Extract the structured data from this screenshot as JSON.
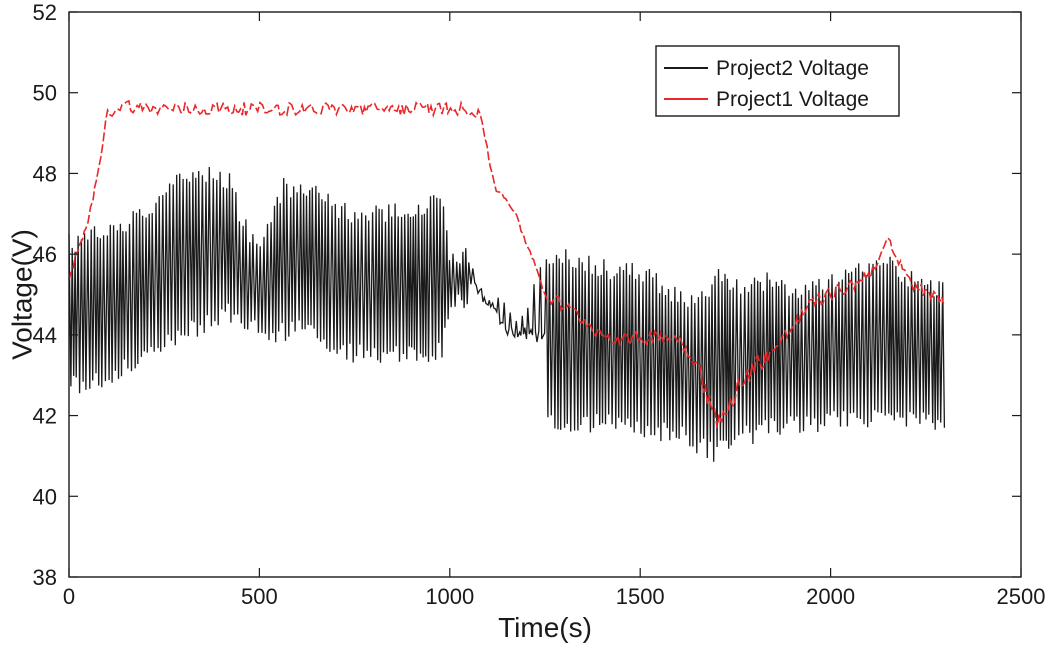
{
  "chart_data": {
    "type": "line",
    "title": "",
    "xlabel": "Time(s)",
    "ylabel": "Voltage(V)",
    "xlim": [
      0,
      2500
    ],
    "ylim": [
      38,
      52
    ],
    "xticks": [
      0,
      500,
      1000,
      1500,
      2000,
      2500
    ],
    "yticks": [
      38,
      40,
      42,
      44,
      46,
      48,
      50,
      52
    ],
    "grid": false,
    "legend_position": "top-right",
    "series": [
      {
        "name": "Project2 Voltage",
        "color": "#1a1a1a",
        "line_style": "solid",
        "note_style": "rapidly oscillating between lower and upper envelope",
        "x": [
          0,
          100,
          200,
          300,
          350,
          420,
          450,
          500,
          560,
          600,
          650,
          700,
          800,
          900,
          980,
          1000,
          1050,
          1100,
          1150,
          1200,
          1250,
          1300,
          1400,
          1500,
          1600,
          1650,
          1700,
          1750,
          1800,
          1850,
          1900,
          2000,
          2100,
          2150,
          2200,
          2300
        ],
        "upper": [
          46.5,
          46.8,
          47.2,
          48.2,
          48.3,
          48.1,
          47.2,
          46.3,
          47.9,
          47.9,
          48.0,
          47.3,
          47.2,
          47.4,
          47.5,
          46.3,
          46.2,
          45.1,
          44.9,
          44.6,
          46.2,
          46.2,
          45.9,
          45.8,
          45.2,
          45.0,
          45.7,
          45.4,
          45.5,
          45.7,
          45.2,
          45.5,
          45.9,
          46.1,
          45.7,
          45.3
        ],
        "lower": [
          42.5,
          42.6,
          43.3,
          43.8,
          44.0,
          44.3,
          44.2,
          43.8,
          43.8,
          43.9,
          43.9,
          43.4,
          43.2,
          43.3,
          43.3,
          44.6,
          44.6,
          44.5,
          43.2,
          43.5,
          41.6,
          41.5,
          41.6,
          41.4,
          41.3,
          41.0,
          40.8,
          41.2,
          41.3,
          41.5,
          41.5,
          41.6,
          41.7,
          41.7,
          41.6,
          41.6
        ]
      },
      {
        "name": "Project1 Voltage",
        "color": "#e8282a",
        "line_style": "dashed",
        "x": [
          0,
          20,
          50,
          80,
          100,
          120,
          150,
          200,
          300,
          400,
          500,
          600,
          700,
          800,
          900,
          1000,
          1050,
          1080,
          1100,
          1120,
          1150,
          1180,
          1200,
          1230,
          1250,
          1300,
          1350,
          1400,
          1450,
          1500,
          1550,
          1600,
          1650,
          1680,
          1700,
          1730,
          1760,
          1800,
          1830,
          1850,
          1900,
          1950,
          2000,
          2050,
          2100,
          2150,
          2200,
          2250,
          2300
        ],
        "y": [
          45.3,
          46.0,
          46.8,
          48.2,
          49.5,
          49.6,
          49.7,
          49.6,
          49.6,
          49.6,
          49.6,
          49.6,
          49.6,
          49.6,
          49.6,
          49.6,
          49.6,
          49.5,
          48.5,
          47.6,
          47.4,
          46.8,
          46.3,
          45.6,
          45.0,
          44.7,
          44.4,
          44.0,
          43.9,
          43.9,
          44.0,
          43.9,
          43.3,
          42.4,
          41.8,
          42.1,
          42.8,
          43.2,
          43.5,
          43.6,
          44.2,
          44.8,
          45.0,
          45.2,
          45.5,
          46.3,
          45.4,
          45.0,
          44.9
        ]
      }
    ]
  }
}
